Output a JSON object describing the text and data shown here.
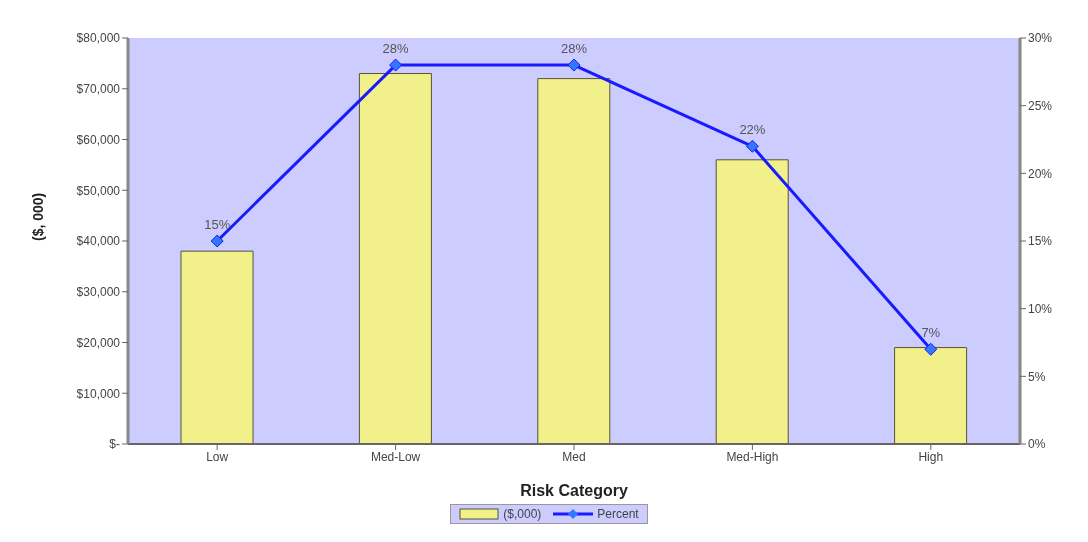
{
  "chart_data": {
    "type": "bar",
    "xlabel": "Risk Category",
    "ylabel": "($, 000)",
    "categories": [
      "Low",
      "Med-Low",
      "Med",
      "Med-High",
      "High"
    ],
    "series": [
      {
        "name": "($,000)",
        "color": "#f2f08a",
        "values": [
          38000,
          73000,
          72000,
          56000,
          19000
        ]
      },
      {
        "name": "Percent",
        "type": "line",
        "axis": "y2",
        "color": "#1a1aff",
        "values": [
          15,
          28,
          28,
          22,
          7
        ],
        "value_labels": [
          "15%",
          "28%",
          "28%",
          "22%",
          "7%"
        ]
      }
    ],
    "ylim": [
      0,
      80000
    ],
    "yticks": [
      {
        "value": 0,
        "label": "$-"
      },
      {
        "value": 10000,
        "label": "$10,000"
      },
      {
        "value": 20000,
        "label": "$20,000"
      },
      {
        "value": 30000,
        "label": "$30,000"
      },
      {
        "value": 40000,
        "label": "$40,000"
      },
      {
        "value": 50000,
        "label": "$50,000"
      },
      {
        "value": 60000,
        "label": "$60,000"
      },
      {
        "value": 70000,
        "label": "$70,000"
      },
      {
        "value": 80000,
        "label": "$80,000"
      }
    ],
    "y2lim": [
      0,
      30
    ],
    "y2ticks": [
      {
        "value": 0,
        "label": "0%"
      },
      {
        "value": 5,
        "label": "5%"
      },
      {
        "value": 10,
        "label": "10%"
      },
      {
        "value": 15,
        "label": "15%"
      },
      {
        "value": 20,
        "label": "20%"
      },
      {
        "value": 25,
        "label": "25%"
      },
      {
        "value": 30,
        "label": "30%"
      }
    ],
    "grid": false,
    "legend": "bottom",
    "marker": "diamond"
  }
}
